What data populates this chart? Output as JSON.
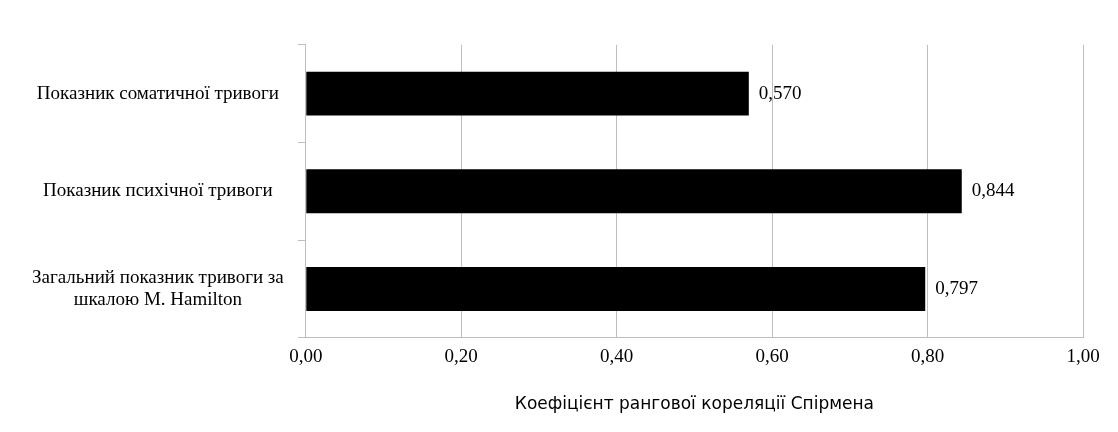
{
  "chart_data": {
    "type": "bar",
    "orientation": "horizontal",
    "xlabel": "Коефіцієнт рангової кореляції Спірмена",
    "categories": [
      "Показник соматичної тривоги",
      "Показник психічної тривоги",
      "Загальний показник тривоги за шкалою M. Hamilton"
    ],
    "values": [
      0.57,
      0.844,
      0.797
    ],
    "color": "#000000",
    "value_labels": [
      "0,570",
      "0,844",
      "0,797"
    ],
    "xlim": [
      0,
      1
    ],
    "xticks": [
      {
        "value": 0,
        "label": "0,00"
      },
      {
        "value": 0.2,
        "label": "0,20"
      },
      {
        "value": 0.4,
        "label": "0,40"
      },
      {
        "value": 0.6,
        "label": "0,60"
      },
      {
        "value": 0.8,
        "label": "0,80"
      },
      {
        "value": 1,
        "label": "1,00"
      }
    ],
    "grid": "x",
    "legend": false
  }
}
